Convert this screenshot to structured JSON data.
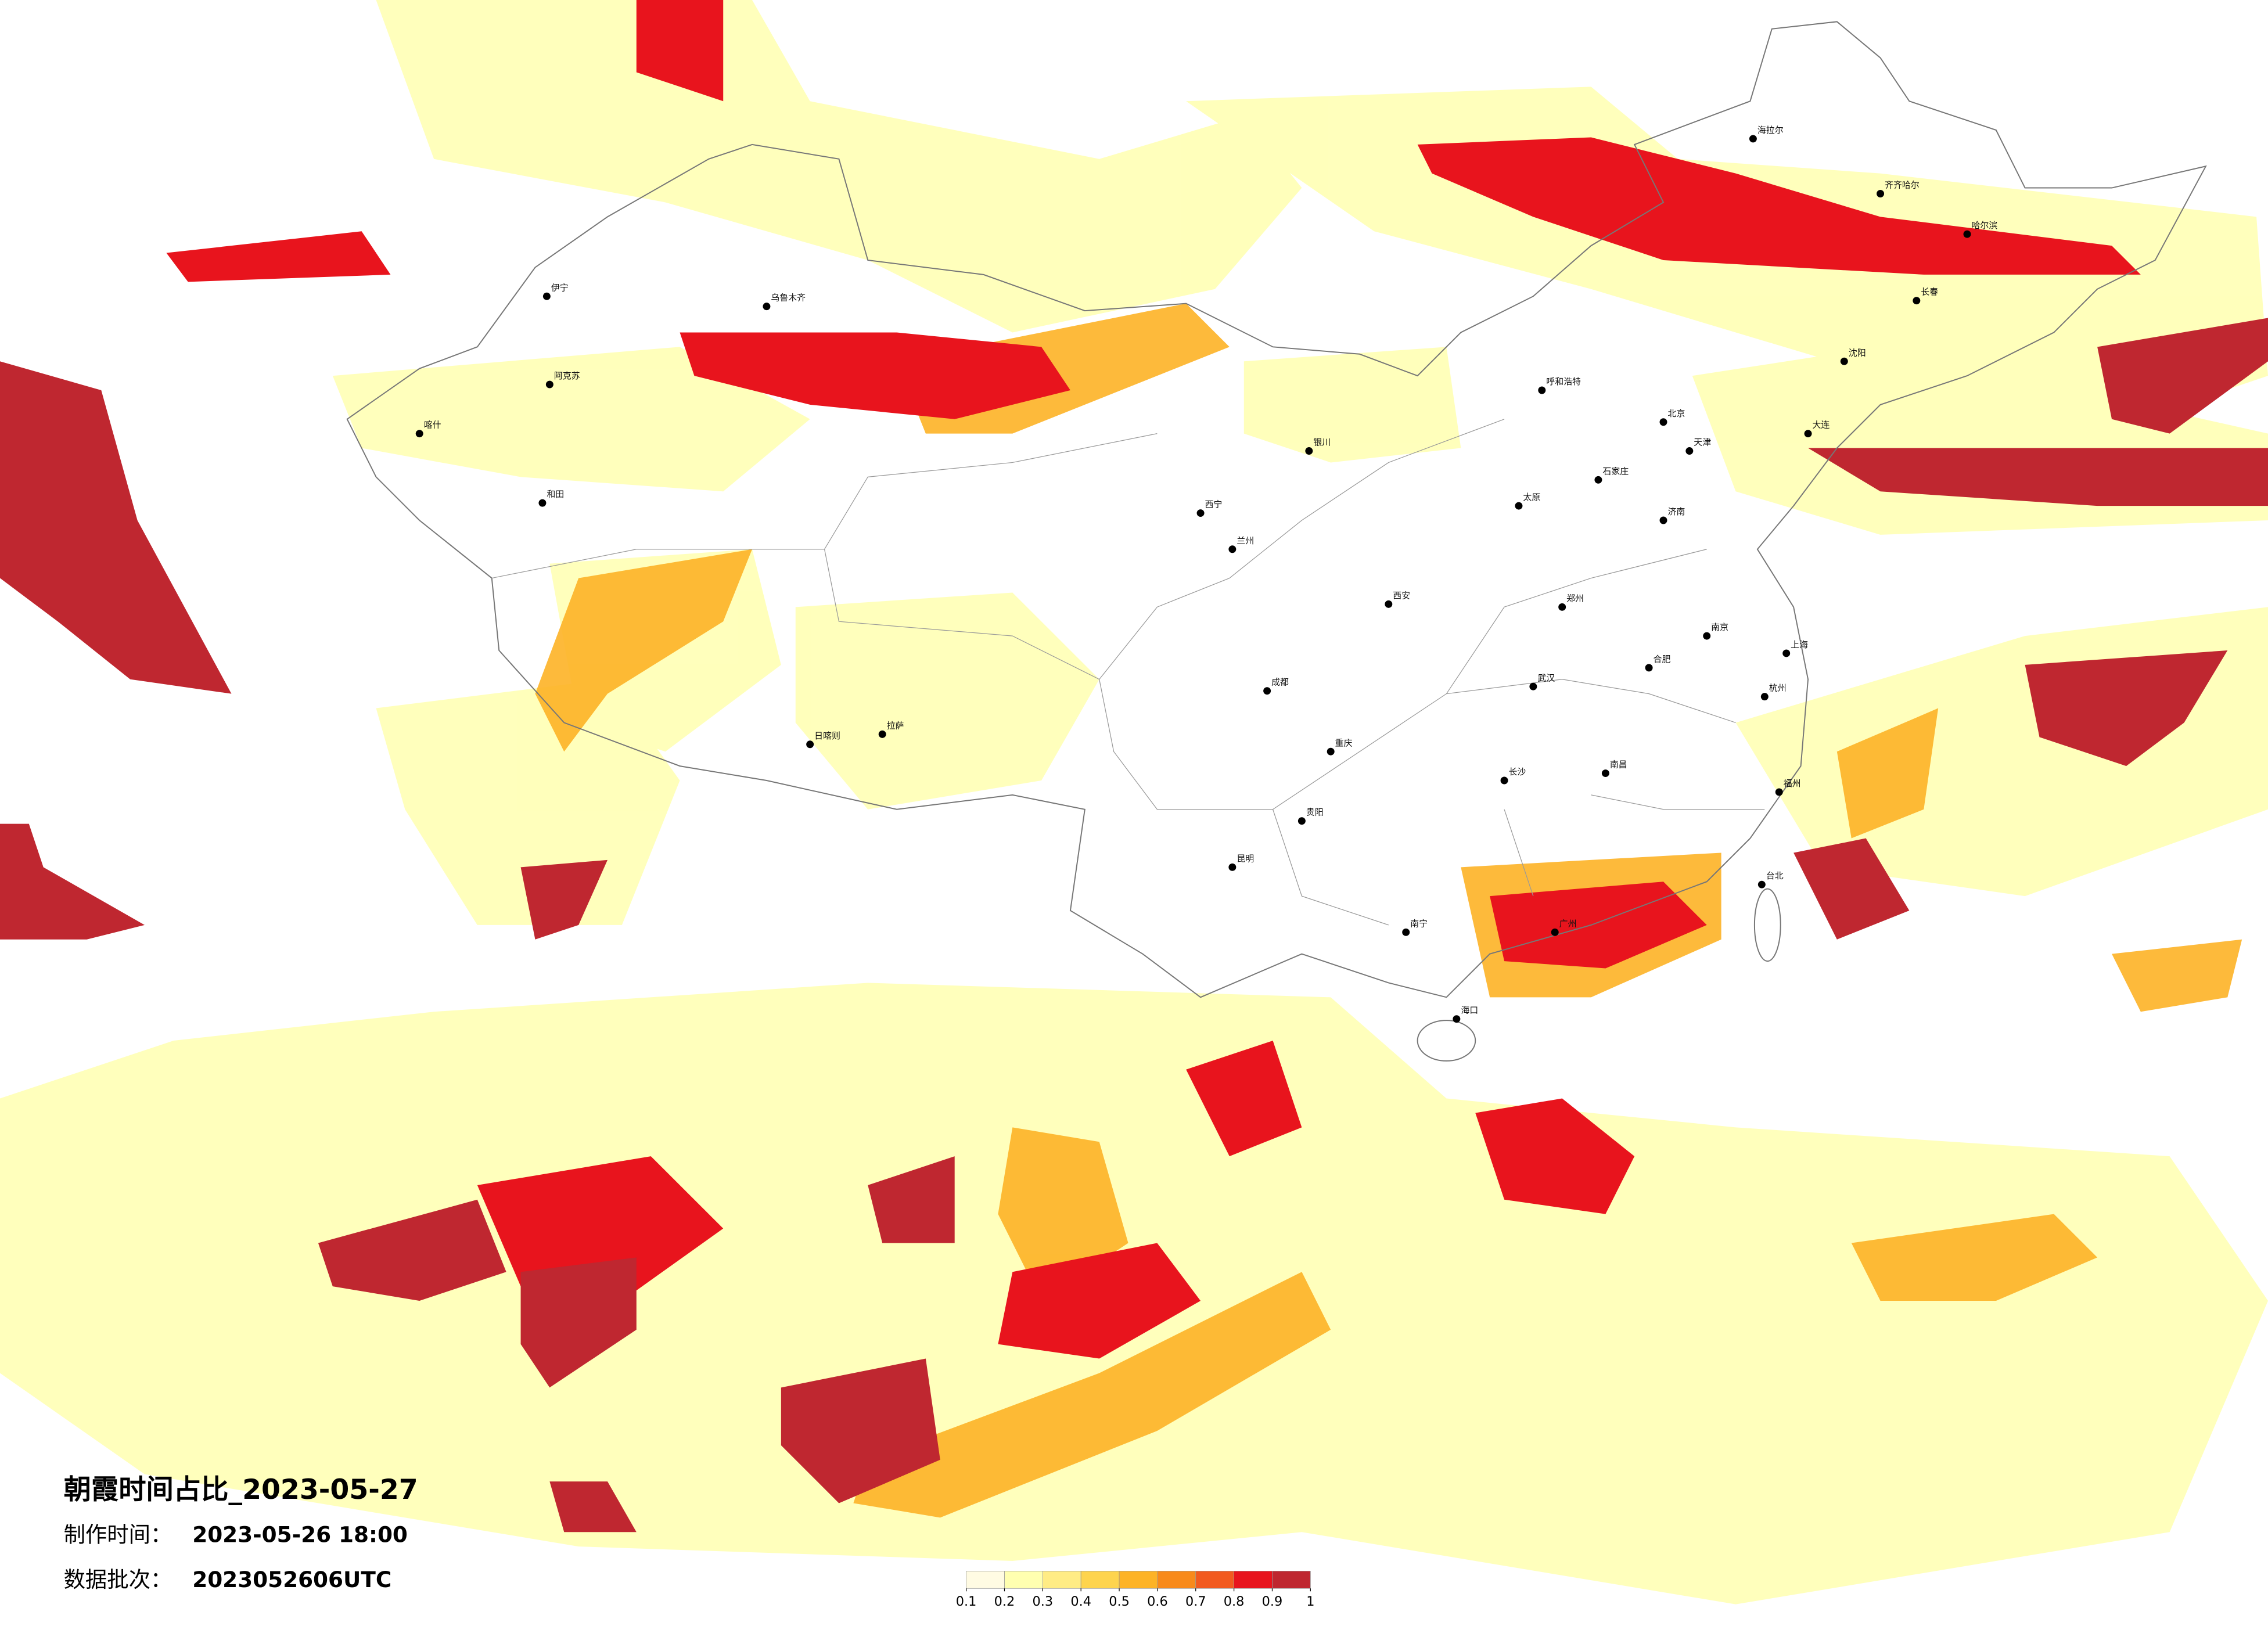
{
  "title": "朝霞时间占比_2023-05-27",
  "production_time": {
    "label": "制作时间：",
    "value": "2023-05-26 18:00"
  },
  "data_batch": {
    "label": "数据批次：",
    "value": "2023052606UTC"
  },
  "legend": {
    "ticks": [
      0.1,
      0.2,
      0.3,
      0.4,
      0.5,
      0.6,
      0.7,
      0.8,
      0.9,
      1
    ],
    "colors": [
      "#fffbe3",
      "#ffffb0",
      "#ffec85",
      "#fed44e",
      "#fdb326",
      "#f88a1b",
      "#f25a1f",
      "#e8141d",
      "#bf2730"
    ]
  },
  "cities": [
    "乌鲁木齐",
    "喀什",
    "和田",
    "阿克苏",
    "伊宁",
    "拉萨",
    "日喀则",
    "西宁",
    "兰州",
    "银川",
    "呼和浩特",
    "北京",
    "天津",
    "石家庄",
    "太原",
    "济南",
    "郑州",
    "西安",
    "成都",
    "重庆",
    "武汉",
    "长沙",
    "南昌",
    "合肥",
    "南京",
    "上海",
    "杭州",
    "福州",
    "广州",
    "南宁",
    "昆明",
    "贵阳",
    "海口",
    "台北",
    "沈阳",
    "长春",
    "哈尔滨",
    "齐齐哈尔",
    "海拉尔",
    "大连"
  ]
}
